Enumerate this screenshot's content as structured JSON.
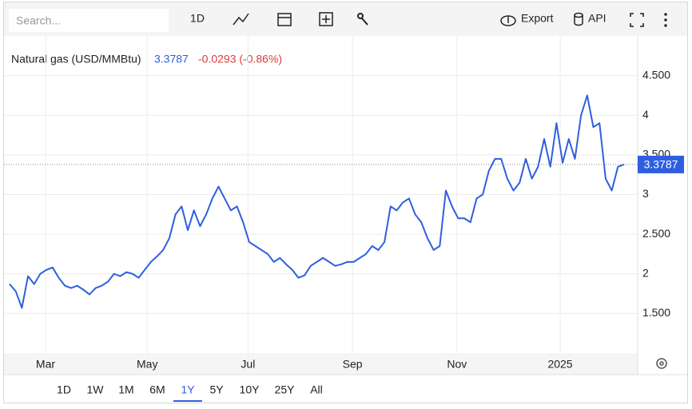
{
  "toolbar": {
    "search_placeholder": "Search...",
    "interval": "1D",
    "export": "Export",
    "api": "API"
  },
  "ranges": [
    "1D",
    "1W",
    "1M",
    "6M",
    "1Y",
    "5Y",
    "10Y",
    "25Y",
    "All"
  ],
  "selected_range": 4,
  "chart_data": {
    "type": "line",
    "title": "Natural gas (USD/MMBtu)",
    "last_value": 3.3787,
    "change_label": "-0.0293 (-0.86%)",
    "color": "#2f5fe0",
    "values": [
      1.87,
      1.78,
      1.57,
      1.97,
      1.87,
      2.0,
      2.05,
      2.08,
      1.95,
      1.85,
      1.82,
      1.85,
      1.8,
      1.74,
      1.82,
      1.85,
      1.9,
      2.0,
      1.97,
      2.02,
      2.0,
      1.95,
      2.05,
      2.15,
      2.22,
      2.3,
      2.45,
      2.75,
      2.85,
      2.55,
      2.8,
      2.6,
      2.75,
      2.95,
      3.1,
      2.95,
      2.8,
      2.85,
      2.65,
      2.4,
      2.35,
      2.3,
      2.25,
      2.15,
      2.2,
      2.12,
      2.05,
      1.95,
      1.98,
      2.1,
      2.15,
      2.2,
      2.15,
      2.1,
      2.12,
      2.15,
      2.15,
      2.2,
      2.25,
      2.35,
      2.3,
      2.4,
      2.85,
      2.8,
      2.9,
      2.95,
      2.75,
      2.65,
      2.45,
      2.3,
      2.35,
      3.05,
      2.85,
      2.7,
      2.7,
      2.65,
      2.95,
      3.0,
      3.3,
      3.45,
      3.45,
      3.2,
      3.05,
      3.15,
      3.45,
      3.2,
      3.35,
      3.7,
      3.35,
      3.9,
      3.4,
      3.7,
      3.45,
      4.0,
      4.25,
      3.85,
      3.9,
      3.2,
      3.05,
      3.35,
      3.38
    ],
    "xlim": [
      0,
      100
    ],
    "xticks": [
      {
        "value": 5.85,
        "label": "Mar"
      },
      {
        "value": 22.4,
        "label": "May"
      },
      {
        "value": 38.8,
        "label": "Jul"
      },
      {
        "value": 55.8,
        "label": "Sep"
      },
      {
        "value": 72.8,
        "label": "Nov"
      },
      {
        "value": 89.6,
        "label": "2025"
      }
    ],
    "ylim": [
      1,
      5
    ],
    "yticks": [
      {
        "value": 1.5,
        "label": "1.500"
      },
      2,
      {
        "value": 2.5,
        "label": "2.500"
      },
      3,
      {
        "value": 3.5,
        "label": "3.500"
      },
      4,
      {
        "value": 4.5,
        "label": "4.500"
      }
    ],
    "grid": true
  }
}
